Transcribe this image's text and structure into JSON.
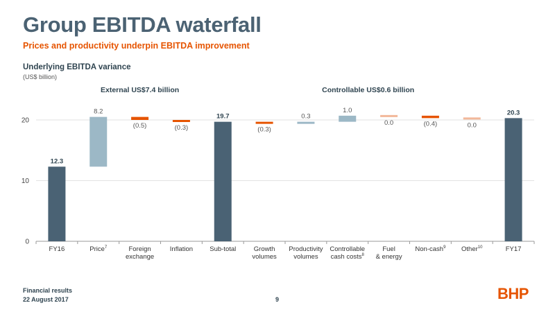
{
  "slide": {
    "title": "Group EBITDA waterfall",
    "subtitle": "Prices and productivity underpin EBITDA improvement",
    "footer_line1": "Financial results",
    "footer_line2": "22 August 2017",
    "page_number": "9",
    "logo_text": "BHP"
  },
  "colors": {
    "total": "#4a6274",
    "positive": "#9cb8c6",
    "negative": "#e65400",
    "neutral": "#f2b89a",
    "grid": "#e2e2e2",
    "axis": "#999999"
  },
  "chart_data": {
    "type": "bar",
    "subtype": "waterfall",
    "title": "Underlying EBITDA variance",
    "unit_label": "(US$ billion)",
    "ylim": [
      0,
      22
    ],
    "yticks": [
      0,
      10,
      20
    ],
    "grid": true,
    "groups": [
      {
        "label": "External US$7.4 billion",
        "from": 1,
        "to": 3
      },
      {
        "label": "Controllable US$0.6 billion",
        "from": 5,
        "to": 10
      }
    ],
    "bars": [
      {
        "category": "FY16",
        "sup": "",
        "kind": "total",
        "start": 0,
        "end": 12.3,
        "label": "12.3"
      },
      {
        "category": "Price",
        "sup": "7",
        "kind": "positive",
        "start": 12.3,
        "end": 20.5,
        "label": "8.2"
      },
      {
        "category": "Foreign exchange",
        "sup": "",
        "kind": "negative",
        "start": 20.5,
        "end": 20.0,
        "label": "(0.5)"
      },
      {
        "category": "Inflation",
        "sup": "",
        "kind": "negative",
        "start": 20.0,
        "end": 19.7,
        "label": "(0.3)"
      },
      {
        "category": "Sub-total",
        "sup": "",
        "kind": "total",
        "start": 0,
        "end": 19.7,
        "label": "19.7"
      },
      {
        "category": "Growth volumes",
        "sup": "",
        "kind": "negative",
        "start": 19.7,
        "end": 19.4,
        "label": "(0.3)"
      },
      {
        "category": "Productivity volumes",
        "sup": "",
        "kind": "positive",
        "start": 19.4,
        "end": 19.7,
        "label": "0.3"
      },
      {
        "category": "Controllable cash costs",
        "sup": "8",
        "kind": "positive",
        "start": 19.7,
        "end": 20.7,
        "label": "1.0"
      },
      {
        "category": "Fuel & energy",
        "sup": "",
        "kind": "neutral",
        "start": 20.7,
        "end": 20.7,
        "label": "0.0"
      },
      {
        "category": "Non-cash",
        "sup": "9",
        "kind": "negative",
        "start": 20.7,
        "end": 20.3,
        "label": "(0.4)"
      },
      {
        "category": "Other",
        "sup": "10",
        "kind": "neutral",
        "start": 20.3,
        "end": 20.3,
        "label": "0.0"
      },
      {
        "category": "FY17",
        "sup": "",
        "kind": "total",
        "start": 0,
        "end": 20.3,
        "label": "20.3"
      }
    ]
  }
}
